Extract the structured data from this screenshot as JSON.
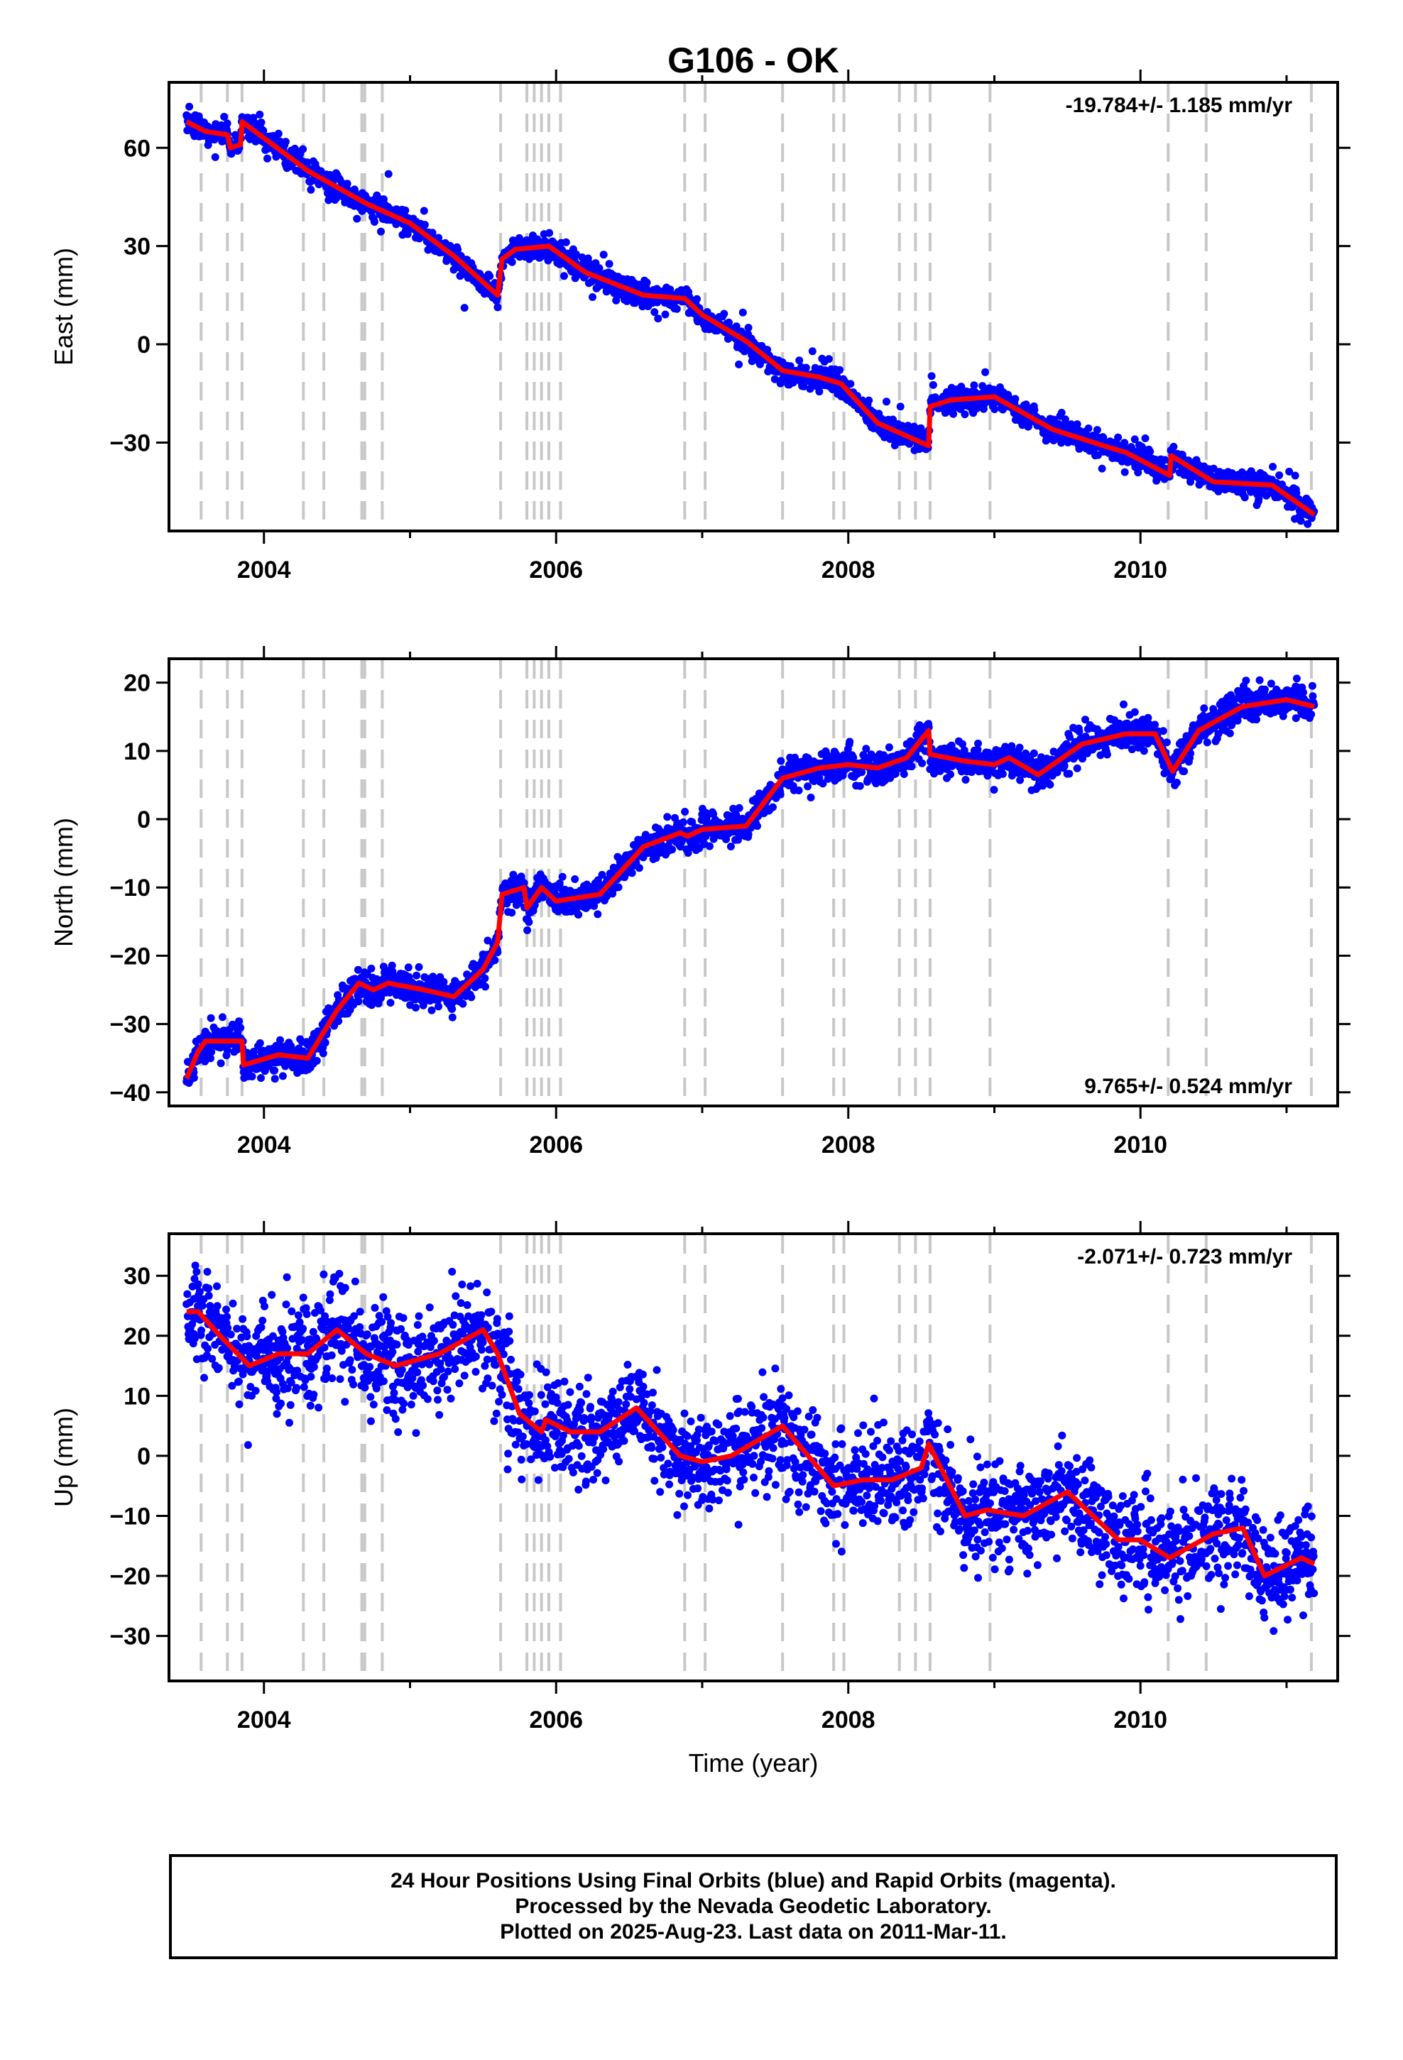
{
  "chart_data": [
    {
      "type": "scatter",
      "station": "G106 - OK",
      "ylabel": "East (mm)",
      "xlabel": "",
      "rate_label": "-19.784+/- 1.185 mm/yr",
      "rate_pos": "top-right",
      "xlim": [
        2003.35,
        2011.35
      ],
      "ylim": [
        -57,
        80
      ],
      "xticks": [
        2004,
        2006,
        2008,
        2010
      ],
      "yticks": [
        60,
        30,
        0,
        -30
      ],
      "ytick_labels": [
        "60",
        "30",
        "0",
        "−30"
      ],
      "series": [
        {
          "name": "24 Hour Positions",
          "color": "#0000ff",
          "noise": 1.8,
          "spike_start": 2003.5,
          "x": [
            2003.47,
            2003.6,
            2003.75,
            2003.77,
            2003.84,
            2003.85,
            2004.0,
            2004.3,
            2004.7,
            2005.0,
            2005.3,
            2005.6,
            2005.63,
            2005.72,
            2005.95,
            2006.2,
            2006.6,
            2006.88,
            2007.0,
            2007.3,
            2007.55,
            2007.8,
            2007.95,
            2008.2,
            2008.55,
            2008.56,
            2008.7,
            2009.0,
            2009.4,
            2009.75,
            2009.9,
            2010.2,
            2010.21,
            2010.5,
            2010.9,
            2011.19
          ],
          "y": [
            68,
            65,
            64,
            60,
            61,
            68,
            63,
            53,
            43,
            37,
            27,
            15,
            26,
            29,
            30,
            22,
            15,
            14,
            9,
            1,
            -8,
            -10,
            -12,
            -24,
            -31,
            -19,
            -17,
            -16,
            -26,
            -31,
            -33,
            -40,
            -34,
            -42,
            -43,
            -52
          ]
        }
      ],
      "model": {
        "name": "model",
        "color": "#ff0000",
        "x": [
          2003.47,
          2003.6,
          2003.75,
          2003.77,
          2003.84,
          2003.85,
          2004.0,
          2004.3,
          2004.7,
          2005.0,
          2005.3,
          2005.6,
          2005.63,
          2005.72,
          2005.95,
          2006.2,
          2006.6,
          2006.88,
          2007.0,
          2007.3,
          2007.55,
          2007.8,
          2007.95,
          2008.2,
          2008.55,
          2008.56,
          2008.7,
          2009.0,
          2009.4,
          2009.75,
          2009.9,
          2010.2,
          2010.21,
          2010.5,
          2010.9,
          2011.19
        ],
        "y": [
          68,
          65,
          64,
          60,
          61,
          68,
          63,
          53,
          43,
          37,
          27,
          15,
          26,
          29,
          30,
          22,
          15,
          14,
          9,
          1,
          -8,
          -10,
          -12,
          -24,
          -31,
          -19,
          -17,
          -16,
          -26,
          -31,
          -33,
          -40,
          -34,
          -42,
          -43,
          -52
        ]
      },
      "vlines": [
        2003.57,
        2003.75,
        2003.85,
        2004.27,
        2004.41,
        2004.67,
        2004.69,
        2004.81,
        2005.62,
        2005.8,
        2005.85,
        2005.9,
        2005.95,
        2006.03,
        2006.88,
        2007.02,
        2007.55,
        2007.9,
        2007.97,
        2008.35,
        2008.46,
        2008.56,
        2008.97,
        2010.19,
        2010.45,
        2011.17
      ]
    },
    {
      "type": "scatter",
      "ylabel": "North (mm)",
      "xlabel": "",
      "rate_label": "9.765+/- 0.524 mm/yr",
      "rate_pos": "bottom-right",
      "xlim": [
        2003.35,
        2011.35
      ],
      "ylim": [
        -42,
        23.5
      ],
      "xticks": [
        2004,
        2006,
        2008,
        2010
      ],
      "yticks": [
        20,
        10,
        0,
        -10,
        -20,
        -30,
        -40
      ],
      "ytick_labels": [
        "20",
        "10",
        "0",
        "−10",
        "−20",
        "−30",
        "−40"
      ],
      "series": [
        {
          "name": "24 Hour Positions",
          "color": "#0000ff",
          "noise": 1.2,
          "spike_start": 2099,
          "x": [
            2003.47,
            2003.55,
            2003.6,
            2003.85,
            2003.86,
            2004.1,
            2004.3,
            2004.5,
            2004.65,
            2004.75,
            2004.85,
            2005.1,
            2005.3,
            2005.5,
            2005.6,
            2005.63,
            2005.78,
            2005.8,
            2005.9,
            2006.0,
            2006.3,
            2006.6,
            2006.85,
            2006.9,
            2007.0,
            2007.3,
            2007.55,
            2007.8,
            2008.0,
            2008.2,
            2008.4,
            2008.55,
            2008.56,
            2008.8,
            2009.0,
            2009.1,
            2009.3,
            2009.6,
            2009.9,
            2010.1,
            2010.22,
            2010.4,
            2010.7,
            2011.0,
            2011.19
          ],
          "y": [
            -38,
            -34,
            -32.5,
            -32.5,
            -36,
            -34.5,
            -35,
            -28,
            -24,
            -25,
            -24,
            -25,
            -26,
            -22,
            -18,
            -11,
            -10,
            -13,
            -10,
            -12,
            -11,
            -4,
            -2,
            -2.5,
            -1.5,
            -1,
            6,
            7.5,
            8,
            7.5,
            9,
            13,
            9.5,
            8.5,
            8,
            9,
            6.5,
            11,
            12.5,
            12.5,
            7,
            13,
            16.5,
            17.5,
            16.5
          ]
        }
      ],
      "model": {
        "name": "model",
        "color": "#ff0000",
        "x": [
          2003.47,
          2003.55,
          2003.6,
          2003.85,
          2003.86,
          2004.1,
          2004.3,
          2004.5,
          2004.65,
          2004.75,
          2004.85,
          2005.1,
          2005.3,
          2005.5,
          2005.6,
          2005.63,
          2005.78,
          2005.8,
          2005.9,
          2006.0,
          2006.3,
          2006.6,
          2006.85,
          2006.9,
          2007.0,
          2007.3,
          2007.55,
          2007.8,
          2008.0,
          2008.2,
          2008.4,
          2008.55,
          2008.56,
          2008.8,
          2009.0,
          2009.1,
          2009.3,
          2009.6,
          2009.9,
          2010.1,
          2010.22,
          2010.4,
          2010.7,
          2011.0,
          2011.19
        ],
        "y": [
          -38,
          -34,
          -32.5,
          -32.5,
          -36,
          -34.5,
          -35,
          -28,
          -24,
          -25,
          -24,
          -25,
          -26,
          -22,
          -18,
          -11,
          -10,
          -13,
          -10,
          -12,
          -11,
          -4,
          -2,
          -2.5,
          -1.5,
          -1,
          6,
          7.5,
          8,
          7.5,
          9,
          13,
          9.5,
          8.5,
          8,
          9,
          6.5,
          11,
          12.5,
          12.5,
          7,
          13,
          16.5,
          17.5,
          16.5
        ]
      },
      "vlines": [
        2003.57,
        2003.75,
        2003.85,
        2004.27,
        2004.41,
        2004.67,
        2004.69,
        2004.81,
        2005.62,
        2005.8,
        2005.85,
        2005.9,
        2005.95,
        2006.03,
        2006.88,
        2007.02,
        2007.55,
        2007.9,
        2007.97,
        2008.35,
        2008.46,
        2008.56,
        2008.97,
        2010.19,
        2010.45,
        2011.17
      ]
    },
    {
      "type": "scatter",
      "ylabel": "Up (mm)",
      "xlabel": "Time (year)",
      "rate_label": "-2.071+/- 0.723 mm/yr",
      "rate_pos": "top-right",
      "xlim": [
        2003.35,
        2011.35
      ],
      "ylim": [
        -37.5,
        37
      ],
      "xticks": [
        2004,
        2006,
        2008,
        2010
      ],
      "yticks": [
        30,
        20,
        10,
        0,
        -10,
        -20,
        -30
      ],
      "ytick_labels": [
        "30",
        "20",
        "10",
        "0",
        "−10",
        "−20",
        "−30"
      ],
      "series": [
        {
          "name": "24 Hour Positions",
          "color": "#0000ff",
          "noise": 4.2,
          "spike_start": 2099,
          "x": [
            2003.47,
            2003.55,
            2003.7,
            2003.9,
            2004.1,
            2004.3,
            2004.5,
            2004.7,
            2004.9,
            2005.2,
            2005.5,
            2005.6,
            2005.75,
            2005.9,
            2005.93,
            2006.1,
            2006.3,
            2006.55,
            2006.85,
            2007.0,
            2007.2,
            2007.55,
            2007.9,
            2008.1,
            2008.3,
            2008.5,
            2008.55,
            2008.8,
            2008.95,
            2009.2,
            2009.5,
            2009.85,
            2010.0,
            2010.2,
            2010.5,
            2010.7,
            2010.85,
            2011.1,
            2011.19
          ],
          "y": [
            24,
            24,
            20,
            15,
            17,
            17,
            21,
            17,
            15,
            17,
            21,
            17,
            7,
            4,
            6,
            4,
            4,
            8,
            0,
            -1,
            0,
            5,
            -5,
            -4,
            -4,
            -2,
            2,
            -10,
            -9,
            -10,
            -6,
            -14,
            -14,
            -17,
            -13,
            -12,
            -20,
            -17,
            -18
          ]
        }
      ],
      "model": {
        "name": "model",
        "color": "#ff0000",
        "x": [
          2003.47,
          2003.55,
          2003.7,
          2003.9,
          2004.1,
          2004.3,
          2004.5,
          2004.7,
          2004.9,
          2005.2,
          2005.5,
          2005.6,
          2005.75,
          2005.9,
          2005.93,
          2006.1,
          2006.3,
          2006.55,
          2006.85,
          2007.0,
          2007.2,
          2007.55,
          2007.9,
          2008.1,
          2008.3,
          2008.5,
          2008.55,
          2008.8,
          2008.95,
          2009.2,
          2009.5,
          2009.85,
          2010.0,
          2010.2,
          2010.5,
          2010.7,
          2010.85,
          2011.1,
          2011.19
        ],
        "y": [
          24,
          24,
          20,
          15,
          17,
          17,
          21,
          17,
          15,
          17,
          21,
          17,
          7,
          4,
          6,
          4,
          4,
          8,
          0,
          -1,
          0,
          5,
          -5,
          -4,
          -4,
          -2,
          2,
          -10,
          -9,
          -10,
          -6,
          -14,
          -14,
          -17,
          -13,
          -12,
          -20,
          -17,
          -18
        ]
      },
      "vlines": [
        2003.57,
        2003.75,
        2003.85,
        2004.27,
        2004.41,
        2004.67,
        2004.69,
        2004.81,
        2005.62,
        2005.8,
        2005.85,
        2005.9,
        2005.95,
        2006.03,
        2006.88,
        2007.02,
        2007.55,
        2007.9,
        2007.97,
        2008.35,
        2008.46,
        2008.56,
        2008.97,
        2010.19,
        2010.45,
        2011.17
      ]
    }
  ],
  "caption": {
    "line1": "24 Hour Positions Using Final Orbits (blue) and Rapid Orbits (magenta).",
    "line2": "Processed by the Nevada Geodetic Laboratory.",
    "line3": "Plotted on 2025-Aug-23. Last data on 2011-Mar-11."
  }
}
